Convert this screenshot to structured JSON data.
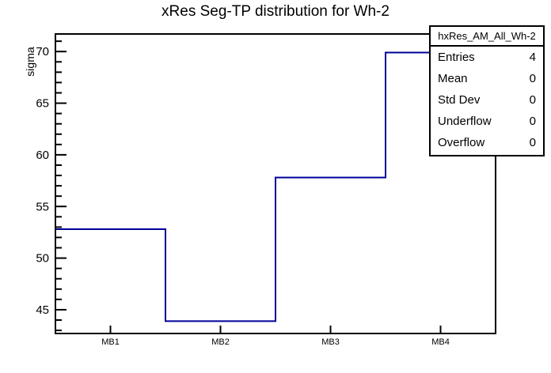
{
  "title": "xRes Seg-TP distribution for Wh-2",
  "chart_data": {
    "type": "step-histogram",
    "categories": [
      "MB1",
      "MB2",
      "MB3",
      "MB4"
    ],
    "values": [
      52.8,
      43.9,
      57.8,
      69.9
    ],
    "title": "xRes Seg-TP distribution for Wh-2",
    "xlabel": "",
    "ylabel": "sigma",
    "ylim": [
      42.7,
      71.7
    ],
    "y_major_ticks": [
      45,
      50,
      55,
      60,
      65,
      70
    ],
    "y_minor_step": 1,
    "grid": "off",
    "line_color": "#000099",
    "frame_color": "#000000",
    "legend_position": "top-right"
  },
  "stats_box": {
    "header": "hxRes_AM_All_Wh-2",
    "rows": [
      {
        "label": "Entries",
        "value": "4"
      },
      {
        "label": "Mean",
        "value": "0"
      },
      {
        "label": "Std Dev",
        "value": "0"
      },
      {
        "label": "Underflow",
        "value": "0"
      },
      {
        "label": "Overflow",
        "value": "0"
      }
    ]
  }
}
